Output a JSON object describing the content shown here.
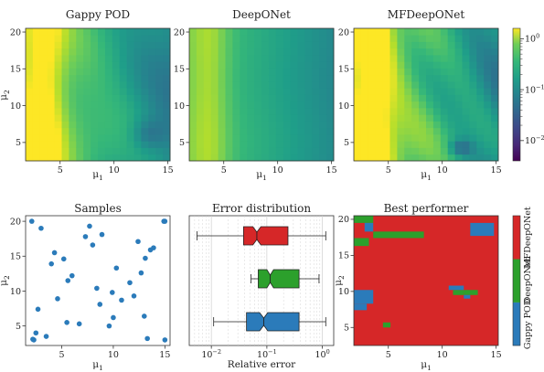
{
  "chart_data": [
    {
      "type": "heatmap",
      "title": "Gappy POD",
      "xlabel": "μ1",
      "ylabel": "μ2",
      "xlim": [
        1.8,
        15.2
      ],
      "ylim": [
        2.5,
        20.5
      ],
      "xticks": [
        5,
        10,
        15
      ],
      "yticks": [
        5,
        10,
        15,
        20
      ],
      "grid_cols": 20,
      "grid_rows": 20,
      "color_scale": "log",
      "colormap": "viridis",
      "value_range": [
        0.004,
        1.6
      ]
    },
    {
      "type": "heatmap",
      "title": "DeepONet",
      "xlabel": "μ1",
      "ylabel": "",
      "xlim": [
        1.8,
        15.2
      ],
      "ylim": [
        2.5,
        20.5
      ],
      "xticks": [
        5,
        10,
        15
      ],
      "yticks": [
        5,
        10,
        15,
        20
      ],
      "grid_cols": 20,
      "grid_rows": 20,
      "color_scale": "log",
      "colormap": "viridis",
      "value_range": [
        0.004,
        1.6
      ]
    },
    {
      "type": "heatmap",
      "title": "MFDeepONet",
      "xlabel": "μ1",
      "ylabel": "",
      "xlim": [
        1.8,
        15.2
      ],
      "ylim": [
        2.5,
        20.5
      ],
      "xticks": [
        5,
        10,
        15
      ],
      "yticks": [
        5,
        10,
        15,
        20
      ],
      "grid_cols": 20,
      "grid_rows": 20,
      "color_scale": "log",
      "colormap": "viridis",
      "value_range": [
        0.004,
        1.6
      ],
      "colorbar": {
        "ticks": [
          1,
          0.1,
          0.01
        ],
        "tick_labels": [
          "10^0",
          "10^-1",
          "10^-2"
        ],
        "range": [
          0.004,
          1.6
        ]
      }
    },
    {
      "type": "scatter",
      "title": "Samples",
      "xlabel": "μ1",
      "ylabel": "μ2",
      "xlim": [
        1.5,
        15.5
      ],
      "ylim": [
        2.2,
        20.8
      ],
      "xticks": [
        5,
        10,
        15
      ],
      "yticks": [
        5,
        10,
        15,
        20
      ],
      "color": "#2b7bba",
      "x": [
        2.1,
        2.5,
        2.3,
        2.7,
        3.0,
        3.5,
        4.0,
        4.3,
        4.6,
        5.2,
        5.5,
        5.6,
        6.0,
        6.7,
        7.3,
        7.7,
        8.0,
        8.4,
        8.7,
        8.9,
        9.6,
        9.9,
        10.0,
        10.3,
        10.8,
        11.6,
        12.0,
        12.4,
        12.7,
        13.1,
        13.3,
        13.6,
        13.9,
        13.0,
        14.9,
        15.0,
        15.0,
        2.2
      ],
      "y": [
        20.0,
        4.0,
        3.0,
        7.4,
        19.0,
        3.5,
        13.9,
        15.5,
        8.9,
        14.6,
        5.5,
        11.5,
        12.2,
        5.3,
        17.8,
        19.3,
        16.6,
        10.4,
        8.1,
        18.1,
        5.0,
        9.8,
        6.2,
        13.3,
        8.7,
        11.2,
        9.3,
        17.1,
        12.6,
        14.7,
        3.2,
        15.9,
        16.2,
        6.4,
        20.0,
        20.0,
        3.0,
        3.1
      ]
    },
    {
      "type": "box",
      "title": "Error distribution",
      "xlabel": "Relative error",
      "x_scale": "log",
      "xlim": [
        0.004,
        1.6
      ],
      "xticks": [
        0.01,
        0.1,
        1
      ],
      "xtick_labels": [
        "10^-2",
        "10^-1",
        "10^0"
      ],
      "notched": true,
      "boxes": [
        {
          "label": "MFDeepONet",
          "color": "#d62728",
          "whisker_low": 0.0055,
          "q1": 0.038,
          "median": 0.066,
          "q3": 0.24,
          "whisker_high": 1.15,
          "notch_low": 0.056,
          "notch_high": 0.078
        },
        {
          "label": "DeepONet",
          "color": "#2ca02c",
          "whisker_low": 0.052,
          "q1": 0.07,
          "median": 0.115,
          "q3": 0.38,
          "whisker_high": 0.87,
          "notch_low": 0.1,
          "notch_high": 0.132
        },
        {
          "label": "Gappy POD",
          "color": "#2b7bba",
          "whisker_low": 0.011,
          "q1": 0.043,
          "median": 0.088,
          "q3": 0.38,
          "whisker_high": 1.15,
          "notch_low": 0.074,
          "notch_high": 0.104
        }
      ]
    },
    {
      "type": "heatmap",
      "title": "Best performer",
      "xlabel": "μ1",
      "ylabel": "μ2",
      "xlim": [
        1.8,
        15.2
      ],
      "ylim": [
        2.5,
        20.5
      ],
      "xticks": [
        5,
        10,
        15
      ],
      "yticks": [
        5,
        10,
        15,
        20
      ],
      "categories": [
        "Gappy POD",
        "DeepONet",
        "MFDeepONet"
      ],
      "category_colors": [
        "#2b7bba",
        "#2ca02c",
        "#d62728"
      ],
      "default_category": "MFDeepONet",
      "regions": [
        {
          "category": "DeepONet",
          "x": [
            1.8,
            3.6
          ],
          "y": [
            19.5,
            20.5
          ]
        },
        {
          "category": "DeepONet",
          "x": [
            3.6,
            8.3
          ],
          "y": [
            17.4,
            18.3
          ]
        },
        {
          "category": "DeepONet",
          "x": [
            1.8,
            3.2
          ],
          "y": [
            16.3,
            17.4
          ]
        },
        {
          "category": "DeepONet",
          "x": [
            11.0,
            12.0
          ],
          "y": [
            9.5,
            10.2
          ]
        },
        {
          "category": "DeepONet",
          "x": [
            12.0,
            13.3
          ],
          "y": [
            9.5,
            10.2
          ]
        },
        {
          "category": "DeepONet",
          "x": [
            4.5,
            5.2
          ],
          "y": [
            5.0,
            5.7
          ]
        },
        {
          "category": "Gappy POD",
          "x": [
            2.8,
            3.6
          ],
          "y": [
            18.3,
            19.5
          ]
        },
        {
          "category": "Gappy POD",
          "x": [
            12.6,
            14.8
          ],
          "y": [
            17.7,
            19.5
          ]
        },
        {
          "category": "Gappy POD",
          "x": [
            1.8,
            3.6
          ],
          "y": [
            8.3,
            10.2
          ]
        },
        {
          "category": "Gappy POD",
          "x": [
            1.8,
            3.0
          ],
          "y": [
            7.4,
            8.3
          ]
        },
        {
          "category": "Gappy POD",
          "x": [
            10.6,
            12.0
          ],
          "y": [
            10.2,
            10.8
          ]
        },
        {
          "category": "Gappy POD",
          "x": [
            12.0,
            12.6
          ],
          "y": [
            9.0,
            9.5
          ]
        }
      ],
      "colorbar": {
        "tick_labels": [
          "Gappy POD",
          "DeepONet",
          "MFDeepONet"
        ]
      }
    }
  ]
}
